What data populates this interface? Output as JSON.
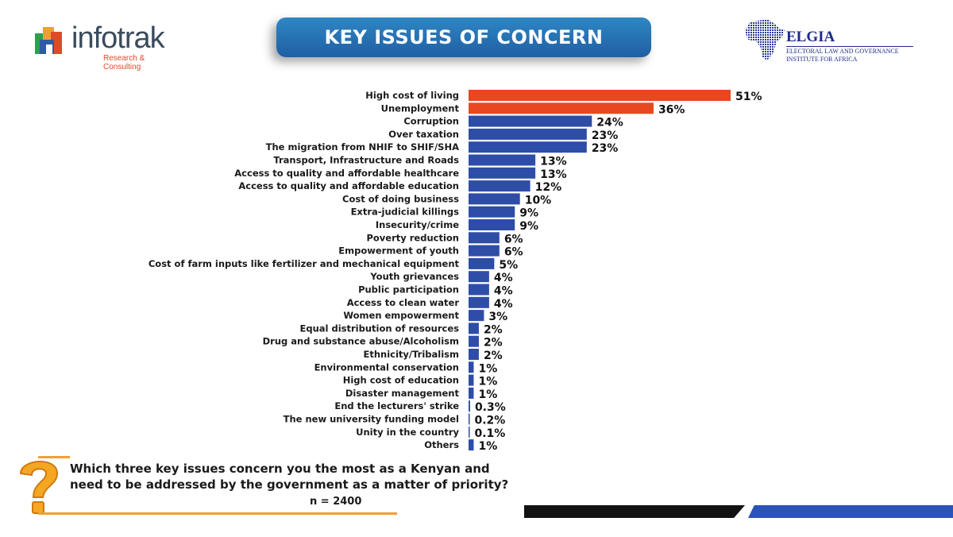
{
  "header": {
    "title": "KEY ISSUES OF CONCERN",
    "left_logo": {
      "word": "infotrak",
      "tagline": "Research & Consulting"
    },
    "right_logo": {
      "name": "ELGIA",
      "full_name": "ELECTORAL LAW AND GOVERNANCE INSTITUTE FOR AFRICA"
    }
  },
  "question": {
    "text": "Which three key issues concern you the most as a Kenyan and need to be addressed by the government as a matter of priority?",
    "sample": "n = 2400",
    "icon": "question-mark-icon"
  },
  "colors": {
    "highlight": "#e8471f",
    "bar": "#2e4da7",
    "banner": "#2a74b8",
    "accent": "#f0a030"
  },
  "chart_data": {
    "type": "bar",
    "orientation": "horizontal",
    "categories": [
      "High cost of living",
      "Unemployment",
      "Corruption",
      "Over taxation",
      "The migration from NHIF to SHIF/SHA",
      "Transport, Infrastructure and Roads",
      "Access to quality and affordable healthcare",
      "Access to quality and affordable education",
      "Cost of doing business",
      "Extra-judicial killings",
      "Insecurity/crime",
      "Poverty reduction",
      "Empowerment of youth",
      "Cost of farm inputs like fertilizer and mechanical equipment",
      "Youth grievances",
      "Public participation",
      "Access to clean water",
      "Women empowerment",
      "Equal distribution of resources",
      "Drug and substance abuse/Alcoholism",
      "Ethnicity/Tribalism",
      "Environmental conservation",
      "High cost of education",
      "Disaster management",
      "End the lecturers' strike",
      "The new university funding model",
      "Unity in the country",
      "Others"
    ],
    "values": [
      51,
      36,
      24,
      23,
      23,
      13,
      13,
      12,
      10,
      9,
      9,
      6,
      6,
      5,
      4,
      4,
      4,
      3,
      2,
      2,
      2,
      1,
      1,
      1,
      0.3,
      0.2,
      0.1,
      1
    ],
    "labels": [
      "51%",
      "36%",
      "24%",
      "23%",
      "23%",
      "13%",
      "13%",
      "12%",
      "10%",
      "9%",
      "9%",
      "6%",
      "6%",
      "5%",
      "4%",
      "4%",
      "4%",
      "3%",
      "2%",
      "2%",
      "2%",
      "1%",
      "1%",
      "1%",
      "0.3%",
      "0.2%",
      "0.1%",
      "1%"
    ],
    "highlighted": [
      0,
      1
    ],
    "unit": "%",
    "title": "KEY ISSUES OF CONCERN",
    "xlabel": "",
    "ylabel": "",
    "legend": "none",
    "grid": false
  }
}
